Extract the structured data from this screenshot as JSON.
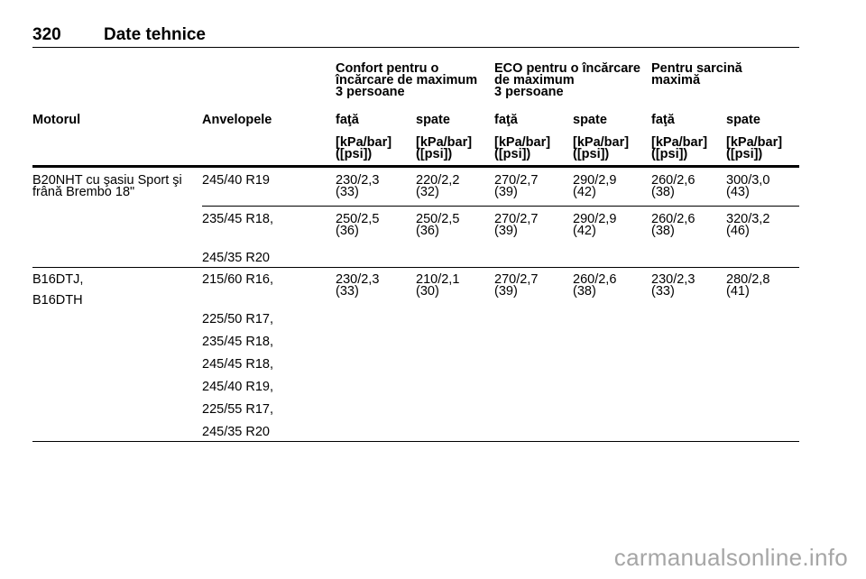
{
  "header": {
    "page_number": "320",
    "title": "Date tehnice"
  },
  "groups": [
    {
      "text": "Confort pentru o\nîncărcare de maximum\n3 persoane"
    },
    {
      "text": "ECO pentru o încărcare\nde maximum\n3 persoane"
    },
    {
      "text": "Pentru sarcină\nmaximă"
    }
  ],
  "columns": [
    "Motorul",
    "Anvelopele",
    "faţă",
    "spate",
    "faţă",
    "spate",
    "faţă",
    "spate"
  ],
  "units": [
    "[kPa/bar]\n([psi])",
    "[kPa/bar]\n([psi])",
    "[kPa/bar]\n([psi])",
    "[kPa/bar]\n([psi])",
    "[kPa/bar]\n([psi])",
    "[kPa/bar]\n([psi])"
  ],
  "rows": [
    {
      "engine": [
        "B20NHT cu şasiu Sport şi\nfrână Brembo 18\""
      ],
      "tyres": [
        "245/40 R19"
      ],
      "values": [
        "230/2,3\n(33)",
        "220/2,2\n(32)",
        "270/2,7\n(39)",
        "290/2,9\n(42)",
        "260/2,6\n(38)",
        "300/3,0\n(43)"
      ]
    },
    {
      "engine": [],
      "tyres": [
        "235/45 R18,",
        "245/35 R20"
      ],
      "values": [
        "250/2,5\n(36)",
        "250/2,5\n(36)",
        "270/2,7\n(39)",
        "290/2,9\n(42)",
        "260/2,6\n(38)",
        "320/3,2\n(46)"
      ]
    },
    {
      "engine": [
        "B16DTJ,",
        "B16DTH"
      ],
      "tyres": [
        "215/60 R16,",
        "225/50 R17,",
        "235/45 R18,",
        "245/45 R18,",
        "245/40 R19,",
        "225/55 R17,",
        "245/35 R20"
      ],
      "values": [
        "230/2,3\n(33)",
        "210/2,1\n(30)",
        "270/2,7\n(39)",
        "260/2,6\n(38)",
        "230/2,3\n(33)",
        "280/2,8\n(41)"
      ]
    }
  ],
  "watermark": "carmanualsonline.info"
}
